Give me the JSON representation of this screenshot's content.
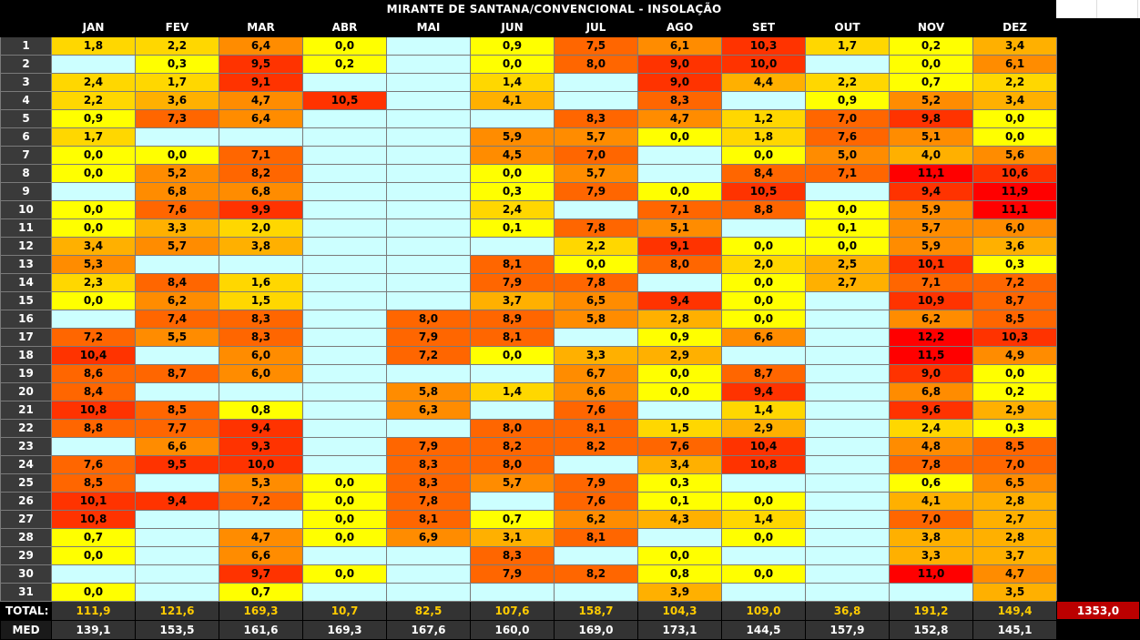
{
  "title": "MIRANTE DE SANTANA/CONVENCIONAL - INSOLAÇÃO",
  "colors": {
    "empty": "#ccffff",
    "low": "#ffff00",
    "mid_low": "#ffd700",
    "mid": "#ffb000",
    "mid_high": "#ff8c00",
    "high": "#ff6600",
    "very_high": "#ff3300",
    "max": "#ff0000",
    "grand_total_bg": "#bb0000",
    "total_text": "#ffcc00"
  },
  "chart_data": {
    "type": "heatmap",
    "title": "MIRANTE DE SANTANA/CONVENCIONAL - INSOLAÇÃO",
    "columns": [
      "JAN",
      "FEV",
      "MAR",
      "ABR",
      "MAI",
      "JUN",
      "JUL",
      "AGO",
      "SET",
      "OUT",
      "NOV",
      "DEZ"
    ],
    "days": [
      "1",
      "2",
      "3",
      "4",
      "5",
      "6",
      "7",
      "8",
      "9",
      "10",
      "11",
      "12",
      "13",
      "14",
      "15",
      "16",
      "17",
      "18",
      "19",
      "20",
      "21",
      "22",
      "23",
      "24",
      "25",
      "26",
      "27",
      "28",
      "29",
      "30",
      "31"
    ],
    "values": [
      [
        "1,8",
        "2,2",
        "6,4",
        "0,0",
        "",
        "0,9",
        "7,5",
        "6,1",
        "10,3",
        "1,7",
        "0,2",
        "3,4"
      ],
      [
        "",
        "0,3",
        "9,5",
        "0,2",
        "",
        "0,0",
        "8,0",
        "9,0",
        "10,0",
        "",
        "0,0",
        "6,1"
      ],
      [
        "2,4",
        "1,7",
        "9,1",
        "",
        "",
        "1,4",
        "",
        "9,0",
        "4,4",
        "2,2",
        "0,7",
        "2,2"
      ],
      [
        "2,2",
        "3,6",
        "4,7",
        "10,5",
        "",
        "4,1",
        "",
        "8,3",
        "",
        "0,9",
        "5,2",
        "3,4"
      ],
      [
        "0,9",
        "7,3",
        "6,4",
        "",
        "",
        "",
        "8,3",
        "4,7",
        "1,2",
        "7,0",
        "9,8",
        "0,0"
      ],
      [
        "1,7",
        "",
        "",
        "",
        "",
        "5,9",
        "5,7",
        "0,0",
        "1,8",
        "7,6",
        "5,1",
        "0,0"
      ],
      [
        "0,0",
        "0,0",
        "7,1",
        "",
        "",
        "4,5",
        "7,0",
        "",
        "0,0",
        "5,0",
        "4,0",
        "5,6"
      ],
      [
        "0,0",
        "5,2",
        "8,2",
        "",
        "",
        "0,0",
        "5,7",
        "",
        "8,4",
        "7,1",
        "11,1",
        "10,6"
      ],
      [
        "",
        "6,8",
        "6,8",
        "",
        "",
        "0,3",
        "7,9",
        "0,0",
        "10,5",
        "",
        "9,4",
        "11,9"
      ],
      [
        "0,0",
        "7,6",
        "9,9",
        "",
        "",
        "2,4",
        "",
        "7,1",
        "8,8",
        "0,0",
        "5,9",
        "11,1"
      ],
      [
        "0,0",
        "3,3",
        "2,0",
        "",
        "",
        "0,1",
        "7,8",
        "5,1",
        "",
        "0,1",
        "5,7",
        "6,0"
      ],
      [
        "3,4",
        "5,7",
        "3,8",
        "",
        "",
        "",
        "2,2",
        "9,1",
        "0,0",
        "0,0",
        "5,9",
        "3,6"
      ],
      [
        "5,3",
        "",
        "",
        "",
        "",
        "8,1",
        "0,0",
        "8,0",
        "2,0",
        "2,5",
        "10,1",
        "0,3"
      ],
      [
        "2,3",
        "8,4",
        "1,6",
        "",
        "",
        "7,9",
        "7,8",
        "",
        "0,0",
        "2,7",
        "7,1",
        "7,2"
      ],
      [
        "0,0",
        "6,2",
        "1,5",
        "",
        "",
        "3,7",
        "6,5",
        "9,4",
        "0,0",
        "",
        "10,9",
        "8,7"
      ],
      [
        "",
        "7,4",
        "8,3",
        "",
        "8,0",
        "8,9",
        "5,8",
        "2,8",
        "0,0",
        "",
        "6,2",
        "8,5"
      ],
      [
        "7,2",
        "5,5",
        "8,3",
        "",
        "7,9",
        "8,1",
        "",
        "0,9",
        "6,6",
        "",
        "12,2",
        "10,3"
      ],
      [
        "10,4",
        "",
        "6,0",
        "",
        "7,2",
        "0,0",
        "3,3",
        "2,9",
        "",
        "",
        "11,5",
        "4,9"
      ],
      [
        "8,6",
        "8,7",
        "6,0",
        "",
        "",
        "",
        "6,7",
        "0,0",
        "8,7",
        "",
        "9,0",
        "0,0"
      ],
      [
        "8,4",
        "",
        "",
        "",
        "5,8",
        "1,4",
        "6,6",
        "0,0",
        "9,4",
        "",
        "6,8",
        "0,2"
      ],
      [
        "10,8",
        "8,5",
        "0,8",
        "",
        "6,3",
        "",
        "7,6",
        "",
        "1,4",
        "",
        "9,6",
        "2,9"
      ],
      [
        "8,8",
        "7,7",
        "9,4",
        "",
        "",
        "8,0",
        "8,1",
        "1,5",
        "2,9",
        "",
        "2,4",
        "0,3"
      ],
      [
        "",
        "6,6",
        "9,3",
        "",
        "7,9",
        "8,2",
        "8,2",
        "7,6",
        "10,4",
        "",
        "4,8",
        "8,5"
      ],
      [
        "7,6",
        "9,5",
        "10,0",
        "",
        "8,3",
        "8,0",
        "",
        "3,4",
        "10,8",
        "",
        "7,8",
        "7,0"
      ],
      [
        "8,5",
        "",
        "5,3",
        "0,0",
        "8,3",
        "5,7",
        "7,9",
        "0,3",
        "",
        "",
        "0,6",
        "6,5"
      ],
      [
        "10,1",
        "9,4",
        "7,2",
        "0,0",
        "7,8",
        "",
        "7,6",
        "0,1",
        "0,0",
        "",
        "4,1",
        "2,8"
      ],
      [
        "10,8",
        "",
        "",
        "0,0",
        "8,1",
        "0,7",
        "6,2",
        "4,3",
        "1,4",
        "",
        "7,0",
        "2,7"
      ],
      [
        "0,7",
        "",
        "4,7",
        "0,0",
        "6,9",
        "3,1",
        "8,1",
        "",
        "0,0",
        "",
        "3,8",
        "2,8"
      ],
      [
        "0,0",
        "",
        "6,6",
        "",
        "",
        "8,3",
        "",
        "0,0",
        "",
        "",
        "3,3",
        "3,7"
      ],
      [
        "",
        "",
        "9,7",
        "0,0",
        "",
        "7,9",
        "8,2",
        "0,8",
        "0,0",
        "",
        "11,0",
        "4,7"
      ],
      [
        "0,0",
        "",
        "0,7",
        "",
        "",
        "",
        "",
        "3,9",
        "",
        "",
        "",
        "3,5"
      ]
    ],
    "total_label": "TOTAL:",
    "totals": [
      "111,9",
      "121,6",
      "169,3",
      "10,7",
      "82,5",
      "107,6",
      "158,7",
      "104,3",
      "109,0",
      "36,8",
      "191,2",
      "149,4"
    ],
    "grand_total": "1353,0",
    "med_label": "MED",
    "med": [
      "139,1",
      "153,5",
      "161,6",
      "169,3",
      "167,6",
      "160,0",
      "169,0",
      "173,1",
      "144,5",
      "157,9",
      "152,8",
      "145,1"
    ]
  }
}
